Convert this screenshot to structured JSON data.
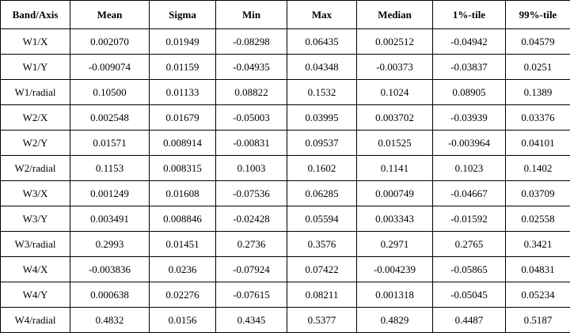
{
  "table": {
    "header": [
      "Band/Axis",
      "Mean",
      "Sigma",
      "Min",
      "Max",
      "Median",
      "1%-tile",
      "99%-tile"
    ],
    "rows": [
      [
        "W1/X",
        "0.002070",
        "0.01949",
        "-0.08298",
        "0.06435",
        "0.002512",
        "-0.04942",
        "0.04579"
      ],
      [
        "W1/Y",
        "-0.009074",
        "0.01159",
        "-0.04935",
        "0.04348",
        "-0.00373",
        "-0.03837",
        "0.0251"
      ],
      [
        "W1/radial",
        "0.10500",
        "0.01133",
        "0.08822",
        "0.1532",
        "0.1024",
        "0.08905",
        "0.1389"
      ],
      [
        "W2/X",
        "0.002548",
        "0.01679",
        "-0.05003",
        "0.03995",
        "0.003702",
        "-0.03939",
        "0.03376"
      ],
      [
        "W2/Y",
        "0.01571",
        "0.008914",
        "-0.00831",
        "0.09537",
        "0.01525",
        "-0.003964",
        "0.04101"
      ],
      [
        "W2/radial",
        "0.1153",
        "0.008315",
        "0.1003",
        "0.1602",
        "0.1141",
        "0.1023",
        "0.1402"
      ],
      [
        "W3/X",
        "0.001249",
        "0.01608",
        "-0.07536",
        "0.06285",
        "0.000749",
        "-0.04667",
        "0.03709"
      ],
      [
        "W3/Y",
        "0.003491",
        "0.008846",
        "-0.02428",
        "0.05594",
        "0.003343",
        "-0.01592",
        "0.02558"
      ],
      [
        "W3/radial",
        "0.2993",
        "0.01451",
        "0.2736",
        "0.3576",
        "0.2971",
        "0.2765",
        "0.3421"
      ],
      [
        "W4/X",
        "-0.003836",
        "0.0236",
        "-0.07924",
        "0.07422",
        "-0.004239",
        "-0.05865",
        "0.04831"
      ],
      [
        "W4/Y",
        "0.000638",
        "0.02276",
        "-0.07615",
        "0.08211",
        "0.001318",
        "-0.05045",
        "0.05234"
      ],
      [
        "W4/radial",
        "0.4832",
        "0.0156",
        "0.4345",
        "0.5377",
        "0.4829",
        "0.4487",
        "0.5187"
      ]
    ]
  }
}
